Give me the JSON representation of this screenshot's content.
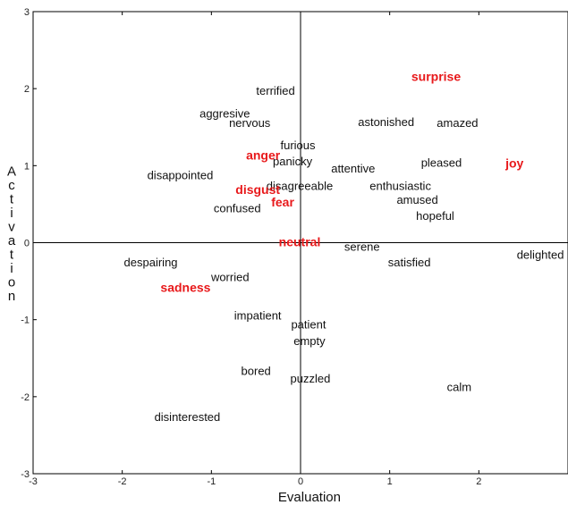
{
  "chart_data": {
    "type": "scatter",
    "xlabel": "Evaluation",
    "ylabel": "Activation",
    "xlim": [
      -3,
      3
    ],
    "ylim": [
      -3,
      3
    ],
    "xticks": [
      "-3",
      "-2",
      "-1",
      "0",
      "1",
      "2"
    ],
    "yticks": [
      "-3",
      "-2",
      "-1",
      "0",
      "1",
      "2",
      "3"
    ],
    "grid": false,
    "emotion_color": "#e8191b",
    "word_color": "#111111",
    "words": [
      {
        "text": "terrified",
        "x": -0.28,
        "y": 1.97
      },
      {
        "text": "aggresive",
        "x": -0.85,
        "y": 1.67
      },
      {
        "text": "nervous",
        "x": -0.57,
        "y": 1.55
      },
      {
        "text": "astonished",
        "x": 0.96,
        "y": 1.56
      },
      {
        "text": "amazed",
        "x": 1.76,
        "y": 1.55
      },
      {
        "text": "furious",
        "x": -0.03,
        "y": 1.26
      },
      {
        "text": "panicky",
        "x": -0.09,
        "y": 1.05
      },
      {
        "text": "attentive",
        "x": 0.59,
        "y": 0.96
      },
      {
        "text": "pleased",
        "x": 1.58,
        "y": 1.03
      },
      {
        "text": "disappointed",
        "x": -1.35,
        "y": 0.87
      },
      {
        "text": "disagreeable",
        "x": -0.01,
        "y": 0.73
      },
      {
        "text": "enthusiastic",
        "x": 1.12,
        "y": 0.73
      },
      {
        "text": "amused",
        "x": 1.31,
        "y": 0.55
      },
      {
        "text": "confused",
        "x": -0.71,
        "y": 0.44
      },
      {
        "text": "hopeful",
        "x": 1.51,
        "y": 0.34
      },
      {
        "text": "serene",
        "x": 0.69,
        "y": -0.06
      },
      {
        "text": "delighted",
        "x": 2.69,
        "y": -0.16
      },
      {
        "text": "despairing",
        "x": -1.68,
        "y": -0.26
      },
      {
        "text": "satisfied",
        "x": 1.22,
        "y": -0.26
      },
      {
        "text": "worried",
        "x": -0.79,
        "y": -0.45
      },
      {
        "text": "impatient",
        "x": -0.48,
        "y": -0.95
      },
      {
        "text": "patient",
        "x": 0.09,
        "y": -1.07
      },
      {
        "text": "empty",
        "x": 0.1,
        "y": -1.28
      },
      {
        "text": "bored",
        "x": -0.5,
        "y": -1.67
      },
      {
        "text": "puzzled",
        "x": 0.11,
        "y": -1.77
      },
      {
        "text": "calm",
        "x": 1.78,
        "y": -1.88
      },
      {
        "text": "disinterested",
        "x": -1.27,
        "y": -2.27
      }
    ],
    "emotions": [
      {
        "text": "surprise",
        "x": 1.52,
        "y": 2.16
      },
      {
        "text": "anger",
        "x": -0.42,
        "y": 1.14
      },
      {
        "text": "joy",
        "x": 2.4,
        "y": 1.03
      },
      {
        "text": "disgust",
        "x": -0.48,
        "y": 0.69
      },
      {
        "text": "fear",
        "x": -0.2,
        "y": 0.53
      },
      {
        "text": "neutral",
        "x": -0.01,
        "y": 0.01
      },
      {
        "text": "sadness",
        "x": -1.29,
        "y": -0.58
      }
    ]
  }
}
